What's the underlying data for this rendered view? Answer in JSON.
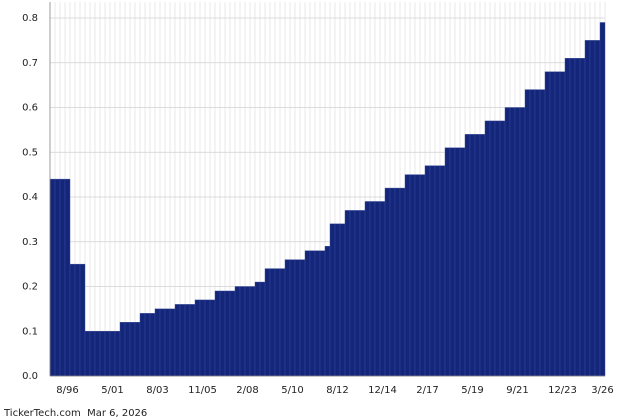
{
  "chart_data": {
    "type": "bar",
    "categories": [
      null,
      null,
      null,
      "8/96",
      null,
      null,
      null,
      null,
      null,
      null,
      null,
      null,
      "5/01",
      null,
      null,
      null,
      null,
      null,
      null,
      null,
      null,
      "8/03",
      null,
      null,
      null,
      null,
      null,
      null,
      null,
      null,
      "11/05",
      null,
      null,
      null,
      null,
      null,
      null,
      null,
      null,
      "2/08",
      null,
      null,
      null,
      null,
      null,
      null,
      null,
      null,
      "5/10",
      null,
      null,
      null,
      null,
      null,
      null,
      null,
      null,
      "8/12",
      null,
      null,
      null,
      null,
      null,
      null,
      null,
      null,
      "12/14",
      null,
      null,
      null,
      null,
      null,
      null,
      null,
      null,
      "2/17",
      null,
      null,
      null,
      null,
      null,
      null,
      null,
      null,
      "5/19",
      null,
      null,
      null,
      null,
      null,
      null,
      null,
      null,
      "9/21",
      null,
      null,
      null,
      null,
      null,
      null,
      null,
      null,
      "12/23",
      null,
      null,
      null,
      null,
      null,
      null,
      null,
      "3/26"
    ],
    "values": [
      0.44,
      0.44,
      0.44,
      0.44,
      0.25,
      0.25,
      0.25,
      0.1,
      0.1,
      0.1,
      0.1,
      0.1,
      0.1,
      0.1,
      0.12,
      0.12,
      0.12,
      0.12,
      0.14,
      0.14,
      0.14,
      0.15,
      0.15,
      0.15,
      0.15,
      0.16,
      0.16,
      0.16,
      0.16,
      0.17,
      0.17,
      0.17,
      0.17,
      0.19,
      0.19,
      0.19,
      0.19,
      0.2,
      0.2,
      0.2,
      0.2,
      0.21,
      0.21,
      0.24,
      0.24,
      0.24,
      0.24,
      0.26,
      0.26,
      0.26,
      0.26,
      0.28,
      0.28,
      0.28,
      0.28,
      0.29,
      0.34,
      0.34,
      0.34,
      0.37,
      0.37,
      0.37,
      0.37,
      0.39,
      0.39,
      0.39,
      0.39,
      0.42,
      0.42,
      0.42,
      0.42,
      0.45,
      0.45,
      0.45,
      0.45,
      0.47,
      0.47,
      0.47,
      0.47,
      0.51,
      0.51,
      0.51,
      0.51,
      0.54,
      0.54,
      0.54,
      0.54,
      0.57,
      0.57,
      0.57,
      0.57,
      0.6,
      0.6,
      0.6,
      0.6,
      0.64,
      0.64,
      0.64,
      0.64,
      0.68,
      0.68,
      0.68,
      0.68,
      0.71,
      0.71,
      0.71,
      0.71,
      0.75,
      0.75,
      0.75,
      0.79
    ],
    "color": "#14267a",
    "ylim": [
      0,
      0.8
    ],
    "yticks": [
      {
        "value": 0,
        "label": "0.0"
      },
      0.1,
      0.2,
      0.3,
      0.4,
      0.5,
      0.6,
      0.7,
      0.8
    ],
    "grid": true,
    "source": "TickerTech.com  Mar 6, 2026"
  }
}
